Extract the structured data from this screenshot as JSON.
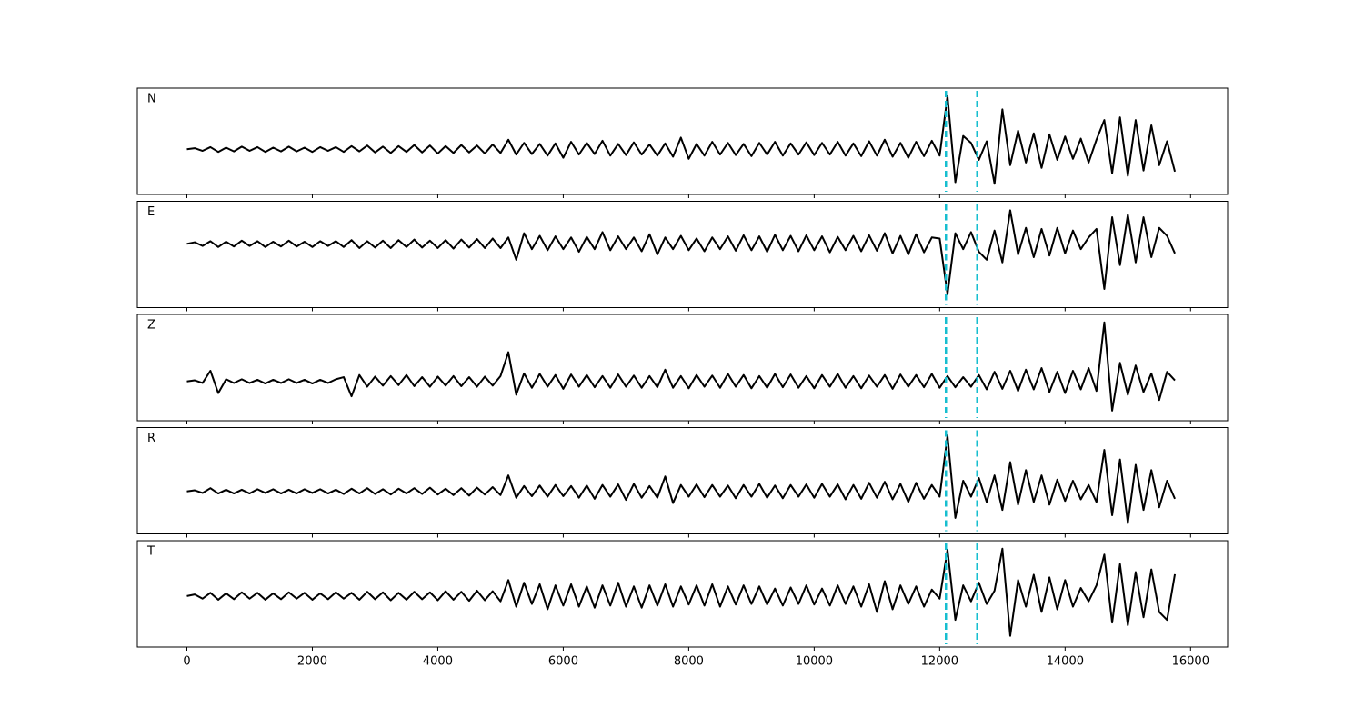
{
  "chart_data": {
    "type": "line",
    "x": [
      0,
      125,
      250,
      375,
      500,
      625,
      750,
      875,
      1000,
      1125,
      1250,
      1375,
      1500,
      1625,
      1750,
      1875,
      2000,
      2125,
      2250,
      2375,
      2500,
      2625,
      2750,
      2875,
      3000,
      3125,
      3250,
      3375,
      3500,
      3625,
      3750,
      3875,
      4000,
      4125,
      4250,
      4375,
      4500,
      4625,
      4750,
      4875,
      5000,
      5125,
      5250,
      5375,
      5500,
      5625,
      5750,
      5875,
      6000,
      6125,
      6250,
      6375,
      6500,
      6625,
      6750,
      6875,
      7000,
      7125,
      7250,
      7375,
      7500,
      7625,
      7750,
      7875,
      8000,
      8125,
      8250,
      8375,
      8500,
      8625,
      8750,
      8875,
      9000,
      9125,
      9250,
      9375,
      9500,
      9625,
      9750,
      9875,
      10000,
      10125,
      10250,
      10375,
      10500,
      10625,
      10750,
      10875,
      11000,
      11125,
      11250,
      11375,
      11500,
      11625,
      11750,
      11875,
      12000,
      12125,
      12250,
      12375,
      12500,
      12625,
      12750,
      12875,
      13000,
      13125,
      13250,
      13375,
      13500,
      13625,
      13750,
      13875,
      14000,
      14125,
      14250,
      14375,
      14500,
      14625,
      14750,
      14875,
      15000,
      15125,
      15250,
      15375,
      15500,
      15625,
      15750
    ],
    "xlim": [
      -790,
      16590
    ],
    "xticks": [
      0,
      2000,
      4000,
      6000,
      8000,
      10000,
      12000,
      14000,
      16000
    ],
    "vlines": [
      12100,
      12600
    ],
    "vline_color": "#17becf",
    "series": [
      {
        "name": "N",
        "color": "#000000",
        "ylim": [
          -0.85,
          1.15
        ],
        "values": [
          0,
          0.02,
          -0.03,
          0.04,
          -0.05,
          0.03,
          -0.04,
          0.05,
          -0.03,
          0.04,
          -0.05,
          0.03,
          -0.04,
          0.05,
          -0.04,
          0.03,
          -0.05,
          0.04,
          -0.03,
          0.04,
          -0.05,
          0.06,
          -0.04,
          0.07,
          -0.06,
          0.05,
          -0.07,
          0.06,
          -0.05,
          0.08,
          -0.06,
          0.07,
          -0.08,
          0.06,
          -0.07,
          0.08,
          -0.06,
          0.07,
          -0.08,
          0.09,
          -0.07,
          0.18,
          -0.1,
          0.12,
          -0.09,
          0.1,
          -0.12,
          0.11,
          -0.16,
          0.14,
          -0.1,
          0.12,
          -0.09,
          0.16,
          -0.12,
          0.1,
          -0.11,
          0.13,
          -0.1,
          0.09,
          -0.12,
          0.11,
          -0.14,
          0.22,
          -0.18,
          0.1,
          -0.12,
          0.14,
          -0.1,
          0.12,
          -0.11,
          0.1,
          -0.13,
          0.12,
          -0.1,
          0.14,
          -0.12,
          0.11,
          -0.1,
          0.13,
          -0.11,
          0.12,
          -0.1,
          0.14,
          -0.12,
          0.11,
          -0.13,
          0.15,
          -0.12,
          0.18,
          -0.14,
          0.12,
          -0.16,
          0.14,
          -0.13,
          0.16,
          -0.12,
          1.0,
          -0.62,
          0.25,
          0.12,
          -0.2,
          0.15,
          -0.65,
          0.75,
          -0.3,
          0.35,
          -0.25,
          0.3,
          -0.35,
          0.28,
          -0.2,
          0.24,
          -0.18,
          0.2,
          -0.25,
          0.18,
          0.55,
          -0.45,
          0.6,
          -0.5,
          0.55,
          -0.4,
          0.45,
          -0.3,
          0.15,
          -0.42
        ]
      },
      {
        "name": "E",
        "color": "#000000",
        "ylim": [
          -1.2,
          0.8
        ],
        "values": [
          0,
          0.03,
          -0.04,
          0.05,
          -0.06,
          0.04,
          -0.05,
          0.06,
          -0.04,
          0.05,
          -0.06,
          0.04,
          -0.05,
          0.06,
          -0.05,
          0.04,
          -0.06,
          0.05,
          -0.04,
          0.05,
          -0.06,
          0.07,
          -0.08,
          0.05,
          -0.07,
          0.06,
          -0.08,
          0.07,
          -0.06,
          0.08,
          -0.07,
          0.06,
          -0.08,
          0.07,
          -0.09,
          0.08,
          -0.07,
          0.09,
          -0.08,
          0.1,
          -0.08,
          0.12,
          -0.3,
          0.2,
          -0.1,
          0.15,
          -0.12,
          0.14,
          -0.1,
          0.12,
          -0.15,
          0.13,
          -0.1,
          0.22,
          -0.12,
          0.14,
          -0.1,
          0.12,
          -0.14,
          0.18,
          -0.2,
          0.12,
          -0.1,
          0.15,
          -0.12,
          0.1,
          -0.14,
          0.12,
          -0.1,
          0.14,
          -0.13,
          0.16,
          -0.12,
          0.14,
          -0.15,
          0.17,
          -0.12,
          0.15,
          -0.14,
          0.16,
          -0.12,
          0.14,
          -0.16,
          0.13,
          -0.12,
          0.15,
          -0.14,
          0.16,
          -0.13,
          0.2,
          -0.18,
          0.15,
          -0.2,
          0.18,
          -0.16,
          0.12,
          0.1,
          -0.95,
          0.2,
          -0.1,
          0.22,
          -0.15,
          -0.3,
          0.25,
          -0.35,
          0.63,
          -0.2,
          0.3,
          -0.25,
          0.28,
          -0.22,
          0.3,
          -0.18,
          0.25,
          -0.1,
          0.12,
          0.28,
          -0.85,
          0.5,
          -0.4,
          0.55,
          -0.35,
          0.5,
          -0.25,
          0.3,
          0.15,
          -0.18
        ]
      },
      {
        "name": "Z",
        "color": "#000000",
        "ylim": [
          -0.74,
          1.26
        ],
        "values": [
          0,
          0.02,
          -0.03,
          0.2,
          -0.22,
          0.04,
          -0.03,
          0.04,
          -0.03,
          0.03,
          -0.04,
          0.03,
          -0.03,
          0.04,
          -0.03,
          0.03,
          -0.04,
          0.03,
          -0.03,
          0.04,
          0.08,
          -0.28,
          0.12,
          -0.1,
          0.09,
          -0.08,
          0.1,
          -0.07,
          0.12,
          -0.09,
          0.08,
          -0.1,
          0.09,
          -0.08,
          0.1,
          -0.09,
          0.08,
          -0.1,
          0.09,
          -0.08,
          0.1,
          0.55,
          -0.25,
          0.15,
          -0.12,
          0.14,
          -0.1,
          0.12,
          -0.14,
          0.13,
          -0.1,
          0.12,
          -0.11,
          0.1,
          -0.12,
          0.13,
          -0.1,
          0.11,
          -0.12,
          0.1,
          -0.11,
          0.22,
          -0.12,
          0.1,
          -0.13,
          0.12,
          -0.1,
          0.11,
          -0.12,
          0.14,
          -0.1,
          0.12,
          -0.13,
          0.1,
          -0.12,
          0.14,
          -0.11,
          0.13,
          -0.12,
          0.1,
          -0.13,
          0.12,
          -0.1,
          0.14,
          -0.12,
          0.1,
          -0.13,
          0.11,
          -0.1,
          0.12,
          -0.14,
          0.13,
          -0.1,
          0.12,
          -0.11,
          0.14,
          -0.12,
          0.1,
          -0.11,
          0.08,
          -0.1,
          0.12,
          -0.15,
          0.18,
          -0.14,
          0.2,
          -0.18,
          0.22,
          -0.15,
          0.25,
          -0.2,
          0.18,
          -0.22,
          0.2,
          -0.15,
          0.25,
          -0.18,
          1.11,
          -0.55,
          0.35,
          -0.25,
          0.3,
          -0.2,
          0.15,
          -0.35,
          0.18,
          0.02
        ]
      },
      {
        "name": "R",
        "color": "#000000",
        "ylim": [
          -0.8,
          1.2
        ],
        "values": [
          0,
          0.02,
          -0.03,
          0.06,
          -0.04,
          0.03,
          -0.04,
          0.03,
          -0.04,
          0.04,
          -0.03,
          0.04,
          -0.04,
          0.03,
          -0.04,
          0.04,
          -0.03,
          0.04,
          -0.04,
          0.03,
          -0.05,
          0.05,
          -0.04,
          0.06,
          -0.05,
          0.04,
          -0.06,
          0.05,
          -0.04,
          0.06,
          -0.05,
          0.07,
          -0.06,
          0.05,
          -0.07,
          0.06,
          -0.08,
          0.07,
          -0.06,
          0.08,
          -0.07,
          0.3,
          -0.12,
          0.1,
          -0.09,
          0.11,
          -0.1,
          0.12,
          -0.09,
          0.1,
          -0.12,
          0.11,
          -0.14,
          0.12,
          -0.1,
          0.13,
          -0.16,
          0.14,
          -0.12,
          0.1,
          -0.12,
          0.28,
          -0.22,
          0.12,
          -0.1,
          0.13,
          -0.11,
          0.12,
          -0.1,
          0.11,
          -0.13,
          0.12,
          -0.1,
          0.14,
          -0.12,
          0.11,
          -0.13,
          0.12,
          -0.1,
          0.13,
          -0.12,
          0.14,
          -0.1,
          0.13,
          -0.15,
          0.12,
          -0.14,
          0.16,
          -0.12,
          0.18,
          -0.15,
          0.14,
          -0.2,
          0.16,
          -0.14,
          0.12,
          -0.1,
          1.05,
          -0.5,
          0.2,
          -0.1,
          0.25,
          -0.2,
          0.3,
          -0.35,
          0.55,
          -0.25,
          0.4,
          -0.2,
          0.3,
          -0.25,
          0.22,
          -0.18,
          0.2,
          -0.15,
          0.12,
          -0.2,
          0.78,
          -0.45,
          0.6,
          -0.6,
          0.5,
          -0.35,
          0.4,
          -0.3,
          0.2,
          -0.14
        ]
      },
      {
        "name": "T",
        "color": "#000000",
        "ylim": [
          -0.96,
          1.04
        ],
        "values": [
          0,
          0.03,
          -0.05,
          0.06,
          -0.07,
          0.05,
          -0.06,
          0.07,
          -0.05,
          0.06,
          -0.07,
          0.05,
          -0.06,
          0.07,
          -0.05,
          0.06,
          -0.07,
          0.05,
          -0.06,
          0.07,
          -0.05,
          0.06,
          -0.07,
          0.08,
          -0.06,
          0.07,
          -0.08,
          0.06,
          -0.07,
          0.08,
          -0.06,
          0.07,
          -0.08,
          0.09,
          -0.07,
          0.08,
          -0.09,
          0.1,
          -0.08,
          0.09,
          -0.1,
          0.3,
          -0.2,
          0.25,
          -0.15,
          0.22,
          -0.25,
          0.2,
          -0.18,
          0.22,
          -0.2,
          0.18,
          -0.22,
          0.2,
          -0.18,
          0.25,
          -0.2,
          0.18,
          -0.22,
          0.2,
          -0.18,
          0.22,
          -0.2,
          0.18,
          -0.16,
          0.2,
          -0.18,
          0.22,
          -0.2,
          0.18,
          -0.16,
          0.2,
          -0.15,
          0.18,
          -0.16,
          0.14,
          -0.18,
          0.16,
          -0.15,
          0.2,
          -0.16,
          0.14,
          -0.18,
          0.2,
          -0.15,
          0.18,
          -0.2,
          0.22,
          -0.3,
          0.28,
          -0.25,
          0.2,
          -0.15,
          0.18,
          -0.2,
          0.12,
          -0.05,
          0.87,
          -0.45,
          0.2,
          -0.1,
          0.25,
          -0.15,
          0.1,
          0.89,
          -0.75,
          0.3,
          -0.2,
          0.4,
          -0.3,
          0.35,
          -0.25,
          0.3,
          -0.2,
          0.15,
          -0.1,
          0.2,
          0.78,
          -0.5,
          0.6,
          -0.55,
          0.45,
          -0.4,
          0.5,
          -0.3,
          -0.45,
          0.41
        ]
      }
    ]
  }
}
